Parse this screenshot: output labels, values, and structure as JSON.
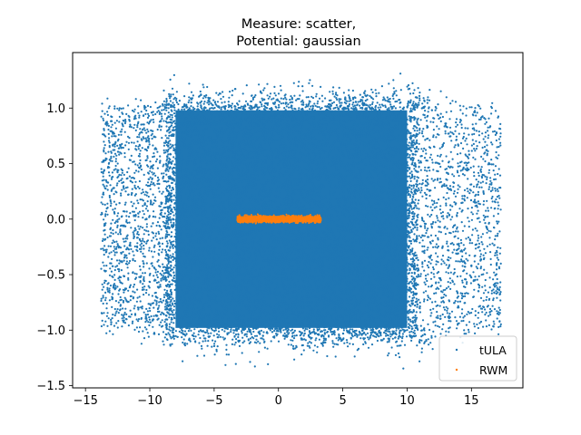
{
  "chart_data": {
    "type": "scatter",
    "title_line1": "Measure: scatter,",
    "title_line2": "Potential: gaussian",
    "xlabel": "",
    "ylabel": "",
    "xlim": [
      -16,
      19
    ],
    "ylim": [
      -1.52,
      1.5
    ],
    "x_ticks": [
      -15,
      -10,
      -5,
      0,
      5,
      10,
      15
    ],
    "x_tick_labels": [
      "−15",
      "−10",
      "−5",
      "0",
      "5",
      "10",
      "15"
    ],
    "y_ticks": [
      -1.5,
      -1.0,
      -0.5,
      0.0,
      0.5,
      1.0
    ],
    "y_tick_labels": [
      "−1.5",
      "−1.0",
      "−0.5",
      "0.0",
      "0.5",
      "1.0"
    ],
    "grid": false,
    "legend_position": "lower-right",
    "series": [
      {
        "name": "tULA",
        "color": "#1f77b4",
        "description_of_extent": {
          "dense_x": [
            -8.5,
            10.5
          ],
          "sparse_x": [
            -14,
            17.5
          ],
          "y": [
            -1.38,
            1.33
          ]
        }
      },
      {
        "name": "RWM",
        "color": "#ff7f0e",
        "description_of_extent": {
          "x": [
            -3.2,
            3.3
          ],
          "y": [
            -0.04,
            0.04
          ]
        }
      }
    ]
  }
}
